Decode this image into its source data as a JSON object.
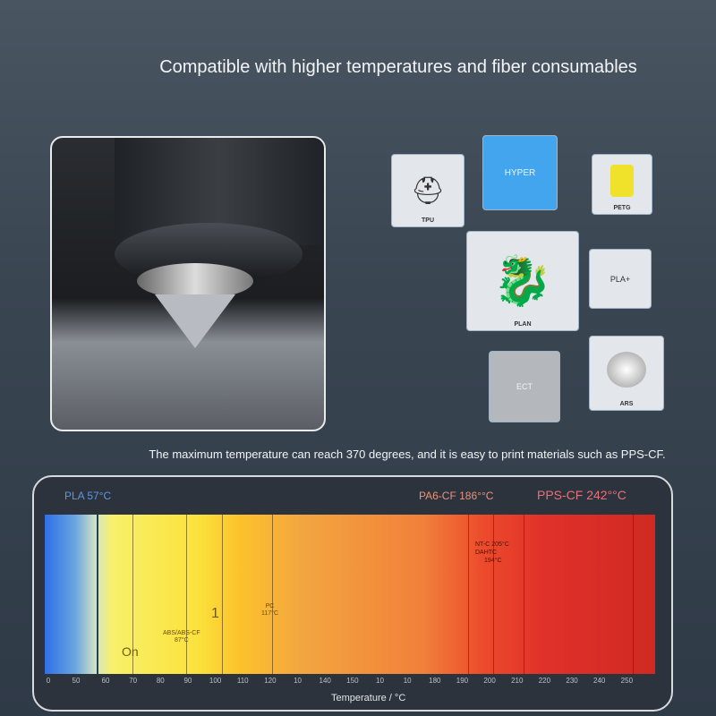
{
  "title": "Compatible with higher temperatures and fiber consumables",
  "subtitle": "The maximum temperature can reach 370 degrees, and it is easy to print materials such as PPS-CF.",
  "tiles": [
    {
      "label": "TPU",
      "kind": "image"
    },
    {
      "label": "HYPER",
      "kind": "text",
      "color": "#42a5ee"
    },
    {
      "label": "PETG",
      "kind": "image"
    },
    {
      "label": "PLAN",
      "kind": "image"
    },
    {
      "label": "PLA+",
      "kind": "text"
    },
    {
      "label": "ECT",
      "kind": "text",
      "color": "#b4b7bb"
    },
    {
      "label": "ARS",
      "kind": "image"
    }
  ],
  "chart": {
    "pla": "PLA 57°C",
    "pa6": "PA6-CF 186°°C",
    "pps": "PPS-CF 242°°C",
    "in_bar": {
      "on": "On",
      "one": "1",
      "abs": "ABS/ABS-CF",
      "abs_t": "87°C",
      "pc": "PC",
      "pc_t": "117°C",
      "ntc": "NT-C 205°C",
      "dahtc": "DAHTC",
      "dahtc_t": "194°C"
    },
    "ticks": [
      "0",
      "50",
      "60",
      "70",
      "80",
      "90",
      "100",
      "110",
      "120",
      "10",
      "140",
      "150",
      "10",
      "10",
      "180",
      "190",
      "200",
      "210",
      "220",
      "230",
      "240",
      "250"
    ],
    "xlabel": "Temperature / °C"
  }
}
